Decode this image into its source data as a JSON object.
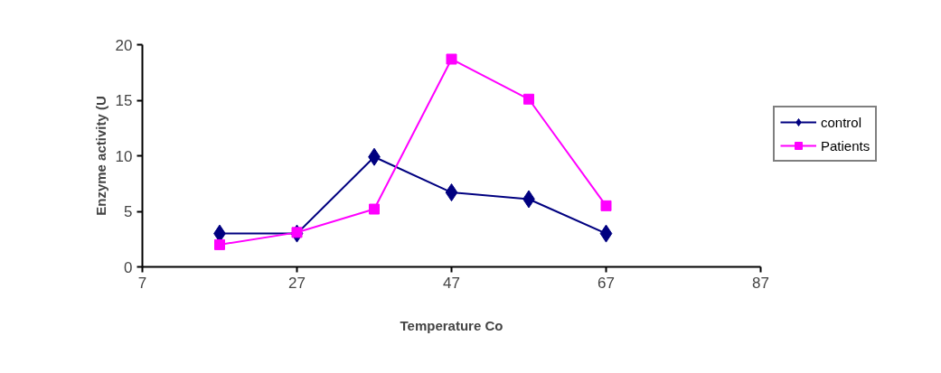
{
  "chart_data": {
    "type": "line",
    "xlabel": "Temperature Co",
    "ylabel": "Enzyme activity (U",
    "x": [
      17,
      27,
      37,
      47,
      57,
      67
    ],
    "series": [
      {
        "name": "control",
        "color": "#000080",
        "marker": "diamond",
        "values": [
          3.0,
          3.0,
          9.9,
          6.7,
          6.1,
          3.0
        ]
      },
      {
        "name": "Patients",
        "color": "#ff00ff",
        "marker": "square",
        "values": [
          2.0,
          3.1,
          5.2,
          18.7,
          15.1,
          5.5
        ]
      }
    ],
    "xlim": [
      7,
      87
    ],
    "xticks": [
      7,
      27,
      47,
      67,
      87
    ],
    "ylim": [
      0,
      20
    ],
    "yticks": [
      0,
      5,
      10,
      15,
      20
    ],
    "grid": false,
    "legend": "right"
  }
}
